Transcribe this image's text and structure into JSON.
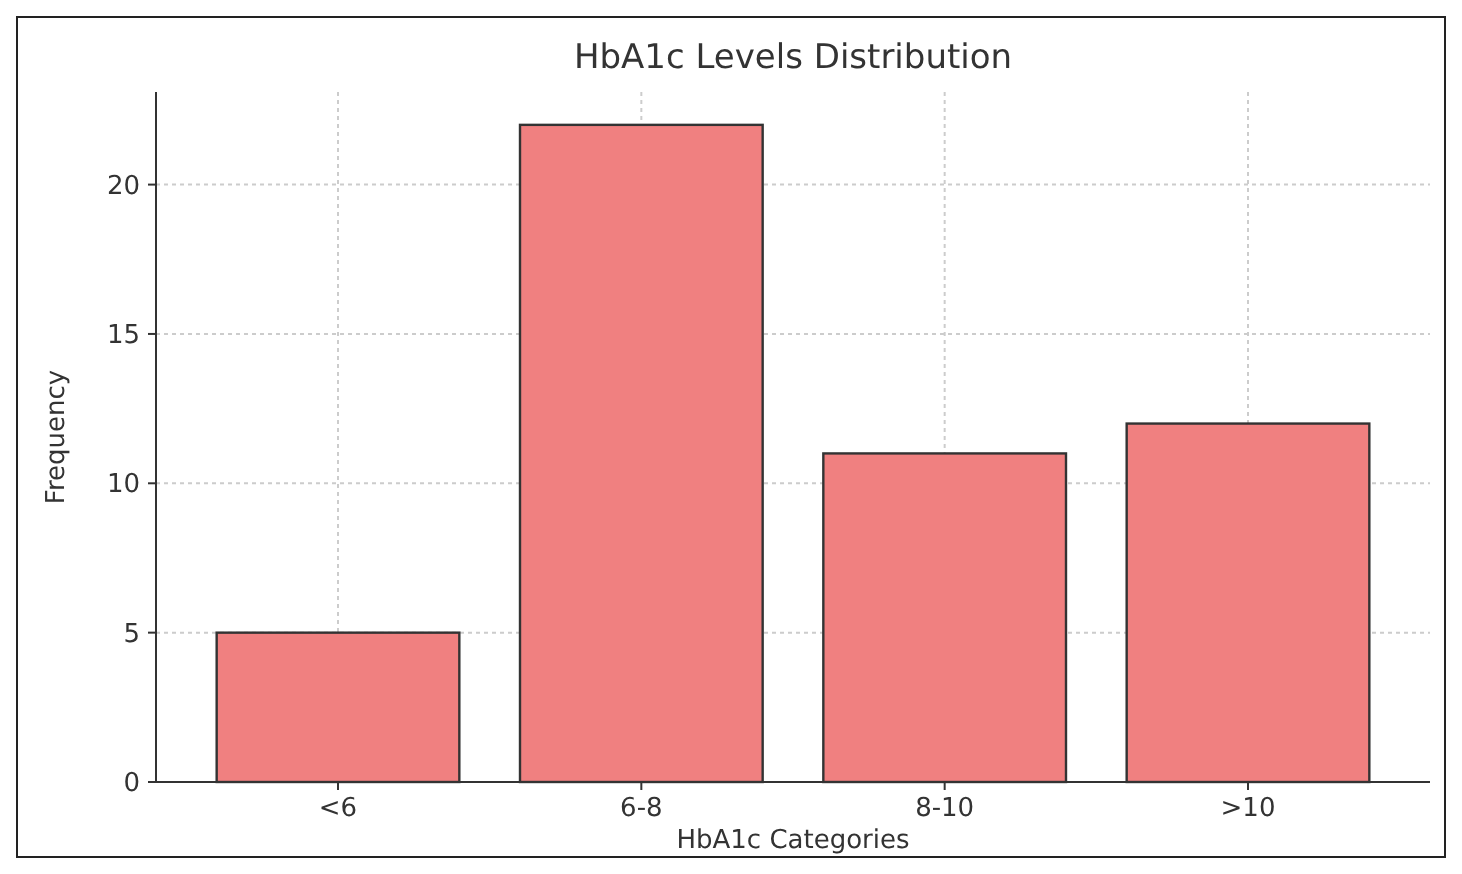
{
  "chart_data": {
    "type": "bar",
    "title": "HbA1c Levels Distribution",
    "xlabel": "HbA1c Categories",
    "ylabel": "Frequency",
    "categories": [
      "<6",
      "6-8",
      "8-10",
      ">10"
    ],
    "values": [
      5,
      22,
      11,
      12
    ],
    "color": "#f08080",
    "ylim": [
      0,
      23.1
    ],
    "yticks": [
      0,
      5,
      10,
      15,
      20
    ],
    "grid": true
  }
}
